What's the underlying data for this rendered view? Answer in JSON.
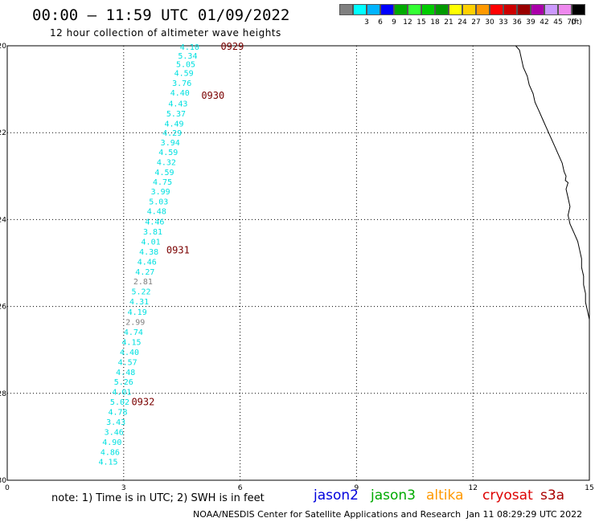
{
  "header": {
    "title": "00:00 – 11:59 UTC 01/09/2022",
    "subtitle": "12 hour collection of altimeter wave heights"
  },
  "color_scale": {
    "unit_label": "(ft)",
    "bins": [
      {
        "label": "",
        "color": "#808080"
      },
      {
        "label": "3",
        "color": "#00ffff"
      },
      {
        "label": "6",
        "color": "#00b4ff"
      },
      {
        "label": "9",
        "color": "#0000ff"
      },
      {
        "label": "12",
        "color": "#00aa00"
      },
      {
        "label": "15",
        "color": "#33ff33"
      },
      {
        "label": "18",
        "color": "#00cc00"
      },
      {
        "label": "21",
        "color": "#009900"
      },
      {
        "label": "24",
        "color": "#ffff00"
      },
      {
        "label": "27",
        "color": "#ffd000"
      },
      {
        "label": "30",
        "color": "#ff9900"
      },
      {
        "label": "33",
        "color": "#ff0000"
      },
      {
        "label": "36",
        "color": "#cc0000"
      },
      {
        "label": "39",
        "color": "#990000"
      },
      {
        "label": "42",
        "color": "#aa00aa"
      },
      {
        "label": "45",
        "color": "#cc99ff"
      },
      {
        "label": "70",
        "color": "#ee88ee"
      },
      {
        "label": "",
        "color": "#000000"
      }
    ]
  },
  "map": {
    "x_ticks": [
      "0",
      "3",
      "6",
      "9",
      "12",
      "15"
    ],
    "y_ticks": [
      "-20",
      "-22",
      "-24",
      "-26",
      "-28",
      "-30"
    ],
    "x_range": [
      0,
      15
    ],
    "y_range": [
      -30,
      -20
    ],
    "swh_color": "#00e0e0",
    "low_swh_color": "#808080",
    "time_color": "#7a0000",
    "time_labels": [
      {
        "text": "0929",
        "lon": 5.5,
        "lat": -20.02
      },
      {
        "text": "0930",
        "lon": 5.0,
        "lat": -21.15
      },
      {
        "text": "0931",
        "lon": 4.1,
        "lat": -24.7
      },
      {
        "text": "0932",
        "lon": 3.2,
        "lat": -28.2
      }
    ],
    "swh_readings": [
      {
        "v": "4.10",
        "lon": 4.7,
        "lat": -20.02
      },
      {
        "v": "5.34",
        "lon": 4.65,
        "lat": -20.22
      },
      {
        "v": "5.05",
        "lon": 4.6,
        "lat": -20.42
      },
      {
        "v": "4.59",
        "lon": 4.55,
        "lat": -20.62
      },
      {
        "v": "3.76",
        "lon": 4.5,
        "lat": -20.85
      },
      {
        "v": "4.40",
        "lon": 4.45,
        "lat": -21.07
      },
      {
        "v": "4.43",
        "lon": 4.4,
        "lat": -21.32
      },
      {
        "v": "5.37",
        "lon": 4.35,
        "lat": -21.55
      },
      {
        "v": "4.49",
        "lon": 4.3,
        "lat": -21.78
      },
      {
        "v": "4.29",
        "lon": 4.25,
        "lat": -22.0
      },
      {
        "v": "3.94",
        "lon": 4.2,
        "lat": -22.22
      },
      {
        "v": "4.59",
        "lon": 4.15,
        "lat": -22.44
      },
      {
        "v": "4.32",
        "lon": 4.1,
        "lat": -22.67
      },
      {
        "v": "4.59",
        "lon": 4.05,
        "lat": -22.9
      },
      {
        "v": "4.75",
        "lon": 4.0,
        "lat": -23.12
      },
      {
        "v": "3.99",
        "lon": 3.95,
        "lat": -23.35
      },
      {
        "v": "5.03",
        "lon": 3.9,
        "lat": -23.58
      },
      {
        "v": "4.48",
        "lon": 3.85,
        "lat": -23.8
      },
      {
        "v": "4.46",
        "lon": 3.8,
        "lat": -24.04
      },
      {
        "v": "3.81",
        "lon": 3.75,
        "lat": -24.27
      },
      {
        "v": "4.01",
        "lon": 3.7,
        "lat": -24.5
      },
      {
        "v": "4.38",
        "lon": 3.65,
        "lat": -24.73
      },
      {
        "v": "4.46",
        "lon": 3.6,
        "lat": -24.96
      },
      {
        "v": "4.27",
        "lon": 3.55,
        "lat": -25.19
      },
      {
        "v": "2.81",
        "lon": 3.5,
        "lat": -25.42,
        "low": true
      },
      {
        "v": "5.22",
        "lon": 3.45,
        "lat": -25.65
      },
      {
        "v": "4.31",
        "lon": 3.4,
        "lat": -25.88
      },
      {
        "v": "4.19",
        "lon": 3.35,
        "lat": -26.12
      },
      {
        "v": "2.99",
        "lon": 3.3,
        "lat": -26.35,
        "low": true
      },
      {
        "v": "4.74",
        "lon": 3.25,
        "lat": -26.58
      },
      {
        "v": "4.15",
        "lon": 3.2,
        "lat": -26.81
      },
      {
        "v": "4.40",
        "lon": 3.15,
        "lat": -27.04
      },
      {
        "v": "4.57",
        "lon": 3.1,
        "lat": -27.27
      },
      {
        "v": "4.48",
        "lon": 3.05,
        "lat": -27.5
      },
      {
        "v": "5.26",
        "lon": 3.0,
        "lat": -27.73
      },
      {
        "v": "4.01",
        "lon": 2.95,
        "lat": -27.96
      },
      {
        "v": "5.02",
        "lon": 2.9,
        "lat": -28.19
      },
      {
        "v": "4.78",
        "lon": 2.85,
        "lat": -28.42
      },
      {
        "v": "3.43",
        "lon": 2.8,
        "lat": -28.65
      },
      {
        "v": "3.46",
        "lon": 2.75,
        "lat": -28.88
      },
      {
        "v": "4.90",
        "lon": 2.7,
        "lat": -29.11
      },
      {
        "v": "4.86",
        "lon": 2.65,
        "lat": -29.34
      },
      {
        "v": "4.15",
        "lon": 2.6,
        "lat": -29.57
      }
    ],
    "coastline": [
      [
        13.1,
        -20.0
      ],
      [
        13.2,
        -20.1
      ],
      [
        13.25,
        -20.3
      ],
      [
        13.3,
        -20.5
      ],
      [
        13.4,
        -20.7
      ],
      [
        13.45,
        -20.9
      ],
      [
        13.55,
        -21.1
      ],
      [
        13.6,
        -21.3
      ],
      [
        13.7,
        -21.5
      ],
      [
        13.8,
        -21.7
      ],
      [
        13.9,
        -21.9
      ],
      [
        14.0,
        -22.1
      ],
      [
        14.1,
        -22.3
      ],
      [
        14.2,
        -22.5
      ],
      [
        14.3,
        -22.7
      ],
      [
        14.35,
        -22.9
      ],
      [
        14.4,
        -23.0
      ],
      [
        14.38,
        -23.1
      ],
      [
        14.45,
        -23.15
      ],
      [
        14.4,
        -23.3
      ],
      [
        14.45,
        -23.5
      ],
      [
        14.5,
        -23.7
      ],
      [
        14.45,
        -23.9
      ],
      [
        14.5,
        -24.1
      ],
      [
        14.6,
        -24.3
      ],
      [
        14.7,
        -24.5
      ],
      [
        14.75,
        -24.7
      ],
      [
        14.8,
        -24.9
      ],
      [
        14.8,
        -25.1
      ],
      [
        14.85,
        -25.3
      ],
      [
        14.85,
        -25.5
      ],
      [
        14.9,
        -25.7
      ],
      [
        14.9,
        -25.9
      ],
      [
        14.95,
        -26.1
      ],
      [
        15.0,
        -26.3
      ]
    ]
  },
  "footer": {
    "note": "note: 1) Time is in UTC; 2) SWH is in feet",
    "satellites": [
      {
        "name": "jason2",
        "color": "#0000dd"
      },
      {
        "name": "jason3",
        "color": "#00aa00"
      },
      {
        "name": "altika",
        "color": "#ff9900"
      },
      {
        "name": "cryosat",
        "color": "#dd0000"
      },
      {
        "name": "s3a",
        "color": "#aa0000"
      }
    ],
    "credit": "NOAA/NESDIS Center for Satellite Applications and Research",
    "timestamp": "Jan 11 08:29:29 UTC 2022"
  }
}
